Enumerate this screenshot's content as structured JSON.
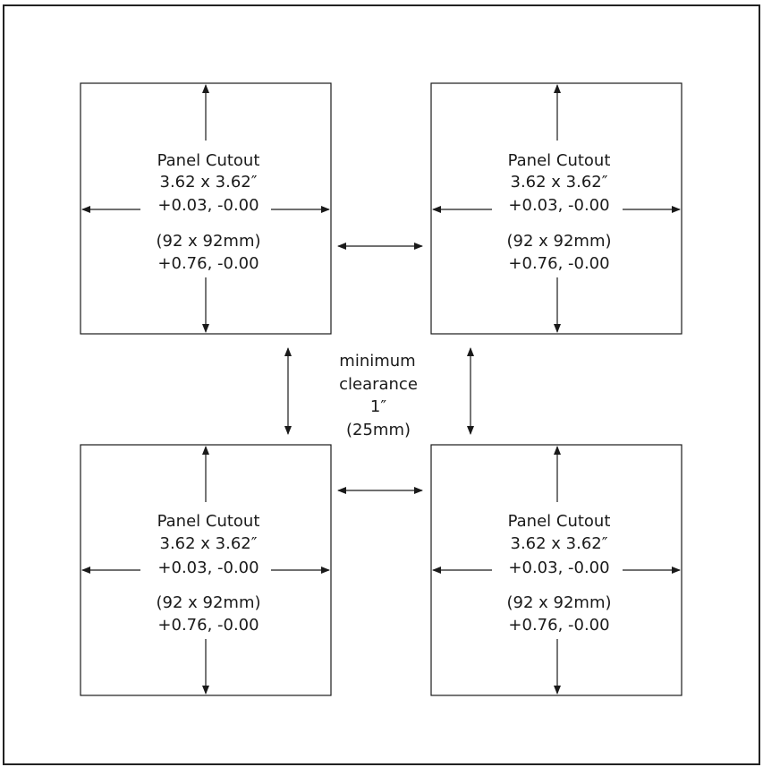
{
  "panels": [
    {
      "title": "Panel Cutout",
      "imperial_size": "3.62 x 3.62″",
      "imperial_tolerance": "+0.03, -0.00",
      "metric_size": "(92 x 92mm)",
      "metric_tolerance": "+0.76, -0.00"
    },
    {
      "title": "Panel Cutout",
      "imperial_size": "3.62 x 3.62″",
      "imperial_tolerance": "+0.03, -0.00",
      "metric_size": "(92 x 92mm)",
      "metric_tolerance": "+0.76, -0.00"
    },
    {
      "title": "Panel Cutout",
      "imperial_size": "3.62 x 3.62″",
      "imperial_tolerance": "+0.03, -0.00",
      "metric_size": "(92 x 92mm)",
      "metric_tolerance": "+0.76, -0.00"
    },
    {
      "title": "Panel Cutout",
      "imperial_size": "3.62 x 3.62″",
      "imperial_tolerance": "+0.03, -0.00",
      "metric_size": "(92 x 92mm)",
      "metric_tolerance": "+0.76, -0.00"
    }
  ],
  "clearance": {
    "line1": "minimum",
    "line2": "clearance",
    "line3": "1″",
    "line4": "(25mm)"
  },
  "colors": {
    "line": "#1a1a1a",
    "frame": "#222222"
  }
}
